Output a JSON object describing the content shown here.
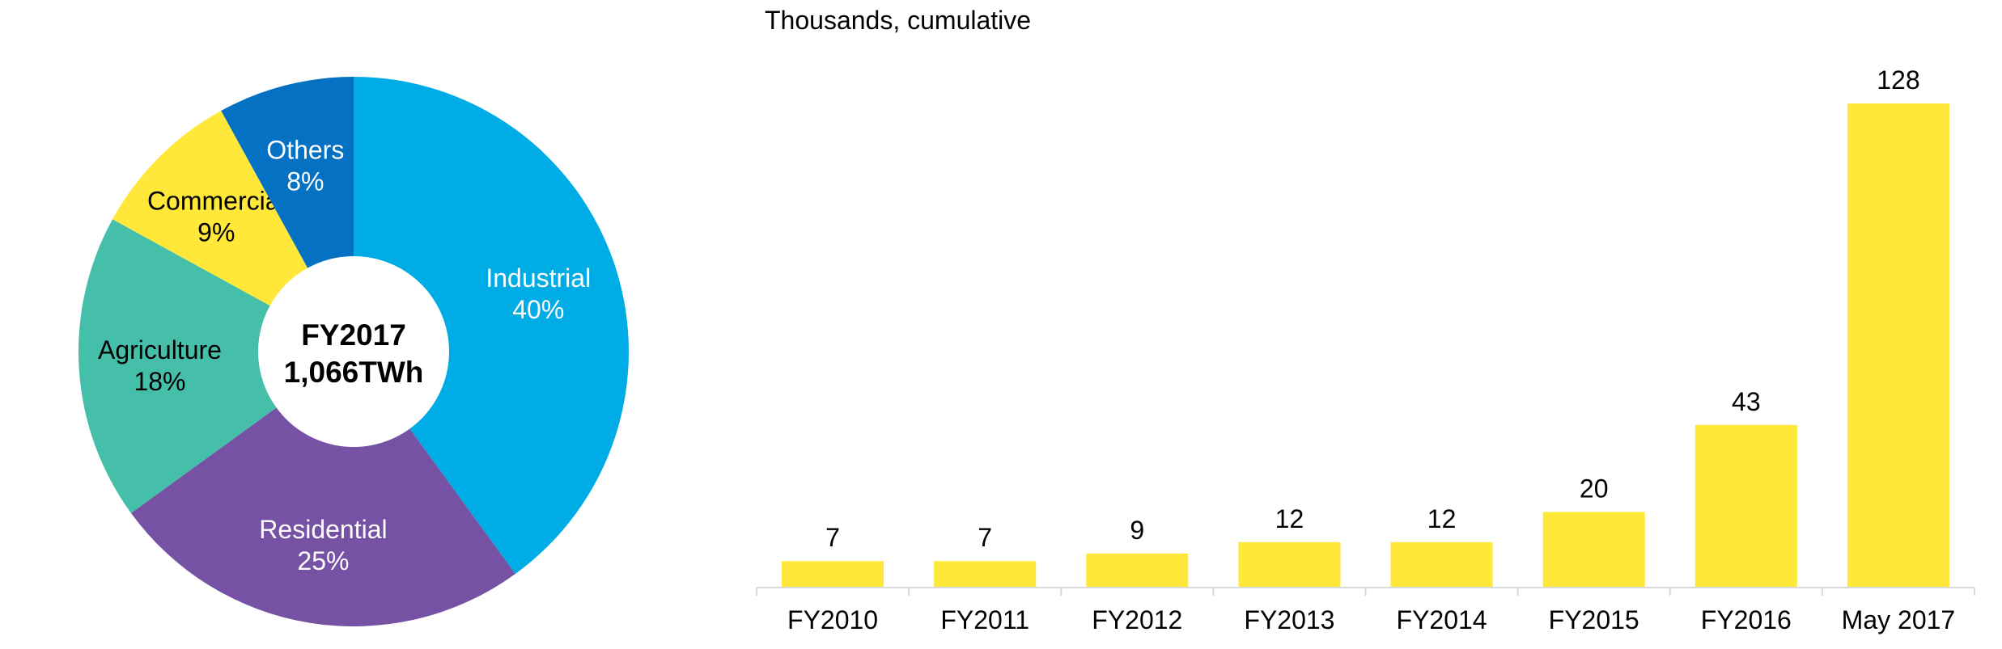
{
  "chart_data": [
    {
      "type": "pie",
      "center_label": {
        "line1": "FY2017",
        "line2": "1,066TWh"
      },
      "slices": [
        {
          "name": "Industrial",
          "value": 40,
          "label": "40%",
          "color": "#00ACE6"
        },
        {
          "name": "Residential",
          "value": 25,
          "label": "25%",
          "color": "#7552A3"
        },
        {
          "name": "Agriculture",
          "value": 18,
          "label": "18%",
          "color": "#45BFAA"
        },
        {
          "name": "Commercial",
          "value": 9,
          "label": "9%",
          "color": "#FFE83A"
        },
        {
          "name": "Others",
          "value": 8,
          "label": "8%",
          "color": "#0571C2"
        }
      ],
      "legend": "none"
    },
    {
      "type": "bar",
      "title": "Thousands, cumulative",
      "categories": [
        "FY2010",
        "FY2011",
        "FY2012",
        "FY2013",
        "FY2014",
        "FY2015",
        "FY2016",
        "May 2017"
      ],
      "values": [
        7,
        7,
        9,
        12,
        12,
        20,
        43,
        128
      ],
      "value_labels": [
        "7",
        "7",
        "9",
        "12",
        "12",
        "20",
        "43",
        "128"
      ],
      "ylim": [
        0,
        128
      ],
      "grid": false,
      "color": "#FFE83A",
      "axis_color": "#D9D9D9"
    }
  ]
}
